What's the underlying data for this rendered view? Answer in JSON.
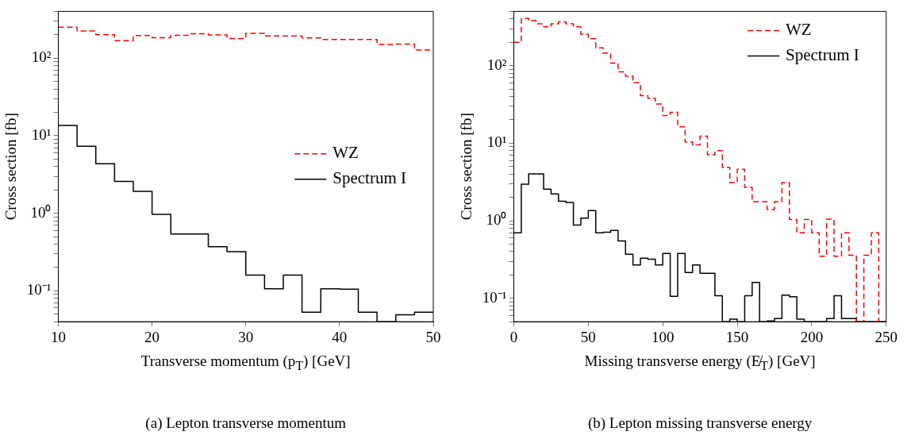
{
  "chart_data": [
    {
      "type": "histogram",
      "xlabel": "Transverse momentum (p$_{T}$) [GeV]",
      "ylabel": "Cross section [fb]",
      "bins": [
        10,
        12,
        14,
        16,
        18,
        20,
        22,
        24,
        26,
        28,
        30,
        32,
        34,
        36,
        38,
        40,
        42,
        44,
        46,
        48,
        50
      ],
      "series": [
        {
          "name": "WZ",
          "color": "#ff0000",
          "line_style": "dashed",
          "values": [
            251,
            224,
            200,
            168,
            196,
            183,
            197,
            206,
            199,
            179,
            209,
            193,
            193,
            182,
            174,
            174,
            174,
            150,
            152,
            127
          ]
        },
        {
          "name": "Spectrum I",
          "color": "#000000",
          "line_style": "solid",
          "values": [
            13.6,
            7.3,
            4.35,
            2.57,
            1.92,
            0.97,
            0.54,
            0.54,
            0.37,
            0.32,
            0.16,
            0.106,
            0.16,
            0.053,
            0.106,
            0.105,
            0.053,
            0.04,
            0.049,
            0.053
          ]
        }
      ],
      "xlim": [
        10,
        50
      ],
      "xticks": [
        10,
        20,
        30,
        40,
        50
      ],
      "ylim": [
        0.04,
        400
      ],
      "log": "y",
      "yticks": [
        {
          "value": 0.04,
          "label": null
        },
        {
          "value": 0.05,
          "label": null
        },
        {
          "value": 0.06,
          "label": null
        },
        {
          "value": 0.07,
          "label": null
        },
        {
          "value": 0.08,
          "label": null
        },
        {
          "value": 0.09,
          "label": null
        },
        {
          "value": 0.1,
          "label": "10⁻¹"
        },
        {
          "value": 0.2,
          "label": null
        },
        {
          "value": 0.3,
          "label": null
        },
        {
          "value": 0.4,
          "label": null
        },
        {
          "value": 0.5,
          "label": null
        },
        {
          "value": 0.6,
          "label": null
        },
        {
          "value": 0.7,
          "label": null
        },
        {
          "value": 0.8,
          "label": null
        },
        {
          "value": 0.9,
          "label": null
        },
        {
          "value": 1,
          "label": "10⁰"
        },
        {
          "value": 2,
          "label": null
        },
        {
          "value": 3,
          "label": null
        },
        {
          "value": 4,
          "label": null
        },
        {
          "value": 5,
          "label": null
        },
        {
          "value": 6,
          "label": null
        },
        {
          "value": 7,
          "label": null
        },
        {
          "value": 8,
          "label": null
        },
        {
          "value": 9,
          "label": null
        },
        {
          "value": 10,
          "label": "10¹"
        },
        {
          "value": 20,
          "label": null
        },
        {
          "value": 30,
          "label": null
        },
        {
          "value": 40,
          "label": null
        },
        {
          "value": 50,
          "label": null
        },
        {
          "value": 60,
          "label": null
        },
        {
          "value": 70,
          "label": null
        },
        {
          "value": 80,
          "label": null
        },
        {
          "value": 90,
          "label": null
        },
        {
          "value": 100,
          "label": "10²"
        },
        {
          "value": 200,
          "label": null
        },
        {
          "value": 300,
          "label": null
        },
        {
          "value": 400,
          "label": null
        }
      ],
      "legend": "right",
      "grid": false,
      "annotations": [
        "(a) Lepton transverse momentum"
      ]
    },
    {
      "type": "histogram",
      "xlabel": "Missing transverse energy (E̸$_{T}$) [GeV]",
      "ylabel": "Cross section [fb]",
      "bins": [
        0,
        5,
        10,
        15,
        20,
        25,
        30,
        35,
        40,
        45,
        50,
        55,
        60,
        65,
        70,
        75,
        80,
        85,
        90,
        95,
        100,
        105,
        110,
        115,
        120,
        125,
        130,
        135,
        140,
        145,
        150,
        155,
        160,
        165,
        170,
        175,
        180,
        185,
        190,
        195,
        200,
        205,
        210,
        215,
        220,
        225,
        230,
        235,
        240,
        245,
        250
      ],
      "series": [
        {
          "name": "WZ",
          "color": "#ff0000",
          "line_style": "dashed",
          "values": [
            200,
            406,
            380,
            347,
            316,
            347,
            367,
            347,
            316,
            255,
            222,
            170,
            145,
            108,
            83,
            73,
            60,
            41,
            38,
            32,
            22.7,
            25,
            16.3,
            10.4,
            9.5,
            12.3,
            7.1,
            8.0,
            4.9,
            3.1,
            4.6,
            2.7,
            1.76,
            1.76,
            1.4,
            1.76,
            3.1,
            1.04,
            0.7,
            1.04,
            0.7,
            0.35,
            1.05,
            0.35,
            0.7,
            0.36,
            0.05,
            0.36,
            0.7,
            0.05
          ]
        },
        {
          "name": "Spectrum I",
          "color": "#000000",
          "line_style": "solid",
          "values": [
            0.7,
            2.97,
            4.03,
            4.03,
            2.55,
            2.22,
            1.78,
            1.72,
            0.88,
            1.08,
            1.35,
            0.7,
            0.71,
            0.75,
            0.55,
            0.37,
            0.27,
            0.33,
            0.32,
            0.27,
            0.38,
            0.106,
            0.38,
            0.215,
            0.27,
            0.21,
            0.21,
            0.108,
            0.05,
            0.054,
            0.05,
            0.108,
            0.16,
            0.05,
            0.051,
            0.055,
            0.11,
            0.105,
            0.054,
            0.05,
            0.05,
            0.05,
            0.055,
            0.108,
            0.055,
            0.055,
            0.05,
            0.05,
            0.05,
            0.05
          ]
        }
      ],
      "xlim": [
        0,
        250
      ],
      "xticks": [
        0,
        50,
        100,
        150,
        200,
        250
      ],
      "ylim": [
        0.05,
        500
      ],
      "log": "y",
      "yticks": [
        {
          "value": 0.05,
          "label": null
        },
        {
          "value": 0.06,
          "label": null
        },
        {
          "value": 0.07,
          "label": null
        },
        {
          "value": 0.08,
          "label": null
        },
        {
          "value": 0.09,
          "label": null
        },
        {
          "value": 0.1,
          "label": "10⁻¹"
        },
        {
          "value": 0.2,
          "label": null
        },
        {
          "value": 0.3,
          "label": null
        },
        {
          "value": 0.4,
          "label": null
        },
        {
          "value": 0.5,
          "label": null
        },
        {
          "value": 0.6,
          "label": null
        },
        {
          "value": 0.7,
          "label": null
        },
        {
          "value": 0.8,
          "label": null
        },
        {
          "value": 0.9,
          "label": null
        },
        {
          "value": 1,
          "label": "10⁰"
        },
        {
          "value": 2,
          "label": null
        },
        {
          "value": 3,
          "label": null
        },
        {
          "value": 4,
          "label": null
        },
        {
          "value": 5,
          "label": null
        },
        {
          "value": 6,
          "label": null
        },
        {
          "value": 7,
          "label": null
        },
        {
          "value": 8,
          "label": null
        },
        {
          "value": 9,
          "label": null
        },
        {
          "value": 10,
          "label": "10¹"
        },
        {
          "value": 20,
          "label": null
        },
        {
          "value": 30,
          "label": null
        },
        {
          "value": 40,
          "label": null
        },
        {
          "value": 50,
          "label": null
        },
        {
          "value": 60,
          "label": null
        },
        {
          "value": 70,
          "label": null
        },
        {
          "value": 80,
          "label": null
        },
        {
          "value": 90,
          "label": null
        },
        {
          "value": 100,
          "label": "10²"
        },
        {
          "value": 200,
          "label": null
        },
        {
          "value": 300,
          "label": null
        },
        {
          "value": 400,
          "label": null
        },
        {
          "value": 500,
          "label": null
        }
      ],
      "legend": "top right",
      "grid": false,
      "annotations": [
        "(b) Lepton missing transverse energy"
      ]
    }
  ]
}
